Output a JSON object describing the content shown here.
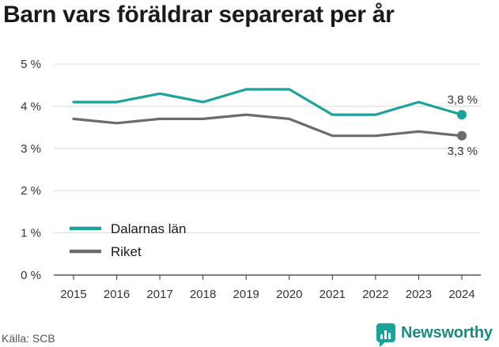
{
  "title": "Barn vars föräldrar separerat per år",
  "source": "Källa: SCB",
  "brand": "Newsworthy",
  "chart_data": {
    "type": "line",
    "x": [
      "2015",
      "2016",
      "2017",
      "2018",
      "2019",
      "2020",
      "2021",
      "2022",
      "2023",
      "2024"
    ],
    "y_ticks": [
      "0 %",
      "1 %",
      "2 %",
      "3 %",
      "4 %",
      "5 %"
    ],
    "ylim": [
      0,
      5
    ],
    "grid": true,
    "legend_placement": "bottom-left",
    "series": [
      {
        "name": "Dalarnas län",
        "color": "#1aa39a",
        "values": [
          4.1,
          4.1,
          4.3,
          4.1,
          4.4,
          4.4,
          3.8,
          3.8,
          4.1,
          3.8
        ],
        "end_label": "3,8 %"
      },
      {
        "name": "Riket",
        "color": "#6b6b70",
        "values": [
          3.7,
          3.6,
          3.7,
          3.7,
          3.8,
          3.7,
          3.3,
          3.3,
          3.4,
          3.3
        ],
        "end_label": "3,3 %"
      }
    ]
  }
}
